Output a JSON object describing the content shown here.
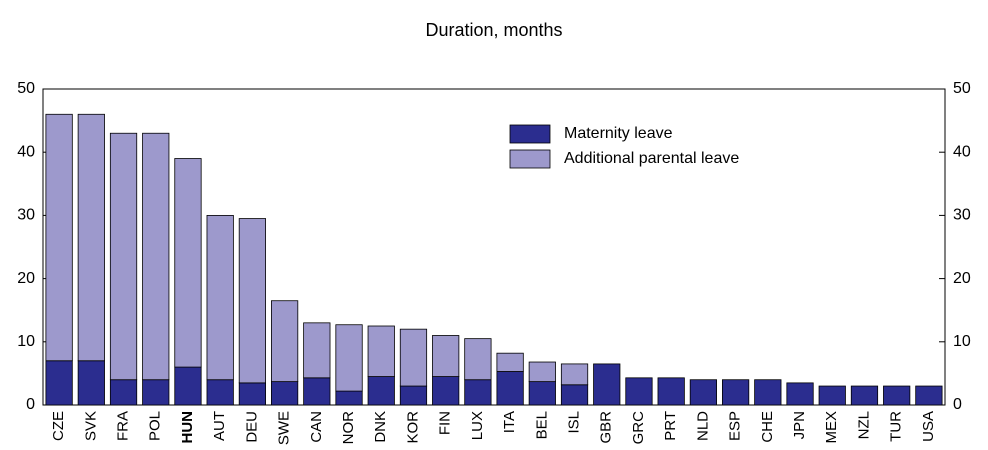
{
  "chart_data": {
    "type": "stacked_bar",
    "title": "Duration, months",
    "categories": [
      "CZE",
      "SVK",
      "FRA",
      "POL",
      "HUN",
      "AUT",
      "DEU",
      "SWE",
      "CAN",
      "NOR",
      "DNK",
      "KOR",
      "FIN",
      "LUX",
      "ITA",
      "BEL",
      "ISL",
      "GBR",
      "GRC",
      "PRT",
      "NLD",
      "ESP",
      "CHE",
      "JPN",
      "MEX",
      "NZL",
      "TUR",
      "USA"
    ],
    "series": [
      {
        "name": "Maternity leave",
        "color": "#2b2d8f",
        "values": [
          7,
          7,
          4,
          4,
          6,
          4,
          3.5,
          3.7,
          4.3,
          2.2,
          4.5,
          3,
          4.5,
          4,
          5.3,
          3.7,
          3.2,
          6.5,
          4.3,
          4.3,
          4,
          4,
          4,
          3.5,
          3,
          3,
          3,
          3
        ]
      },
      {
        "name": "Additional parental leave",
        "color": "#9d99cc",
        "values": [
          39,
          39,
          39,
          39,
          33,
          26,
          26,
          12.8,
          8.7,
          10.5,
          8,
          9,
          6.5,
          6.5,
          2.9,
          3.1,
          3.3,
          0,
          0,
          0,
          0,
          0,
          0,
          0,
          0,
          0,
          0,
          0
        ]
      }
    ],
    "ylim": [
      0,
      50
    ],
    "yticks": [
      0,
      10,
      20,
      30,
      40,
      50
    ],
    "y2lim": [
      0,
      50
    ],
    "y2ticks": [
      0,
      10,
      20,
      30,
      40,
      50
    ],
    "legend": "top-right",
    "grid": false
  }
}
